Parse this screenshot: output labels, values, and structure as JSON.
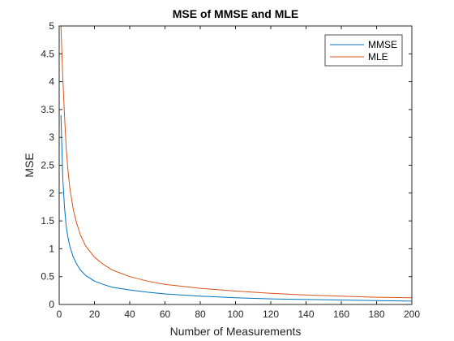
{
  "chart_data": {
    "type": "line",
    "title": "MSE of MMSE and MLE",
    "xlabel": "Number of Measurements",
    "ylabel": "MSE",
    "xlim": [
      0,
      200
    ],
    "ylim": [
      0,
      5
    ],
    "xticks": [
      0,
      20,
      40,
      60,
      80,
      100,
      120,
      140,
      160,
      180,
      200
    ],
    "yticks": [
      0,
      0.5,
      1,
      1.5,
      2,
      2.5,
      3,
      3.5,
      4,
      4.5,
      5
    ],
    "grid": false,
    "legend_position": "top-right",
    "series": [
      {
        "name": "MMSE",
        "color": "#0072bd",
        "x": [
          1,
          2,
          3,
          4,
          5,
          6,
          8,
          10,
          12,
          15,
          20,
          25,
          30,
          40,
          50,
          60,
          80,
          100,
          120,
          140,
          160,
          180,
          200
        ],
        "y": [
          3.4,
          2.3,
          1.75,
          1.4,
          1.2,
          1.05,
          0.85,
          0.72,
          0.62,
          0.52,
          0.42,
          0.36,
          0.31,
          0.26,
          0.22,
          0.19,
          0.15,
          0.12,
          0.1,
          0.09,
          0.08,
          0.07,
          0.06
        ]
      },
      {
        "name": "MLE",
        "color": "#d95319",
        "x": [
          1,
          2,
          3,
          4,
          5,
          6,
          8,
          10,
          12,
          15,
          20,
          25,
          30,
          40,
          50,
          60,
          80,
          100,
          120,
          140,
          160,
          180,
          200
        ],
        "y": [
          5.0,
          4.1,
          3.4,
          2.8,
          2.4,
          2.1,
          1.7,
          1.45,
          1.25,
          1.05,
          0.85,
          0.72,
          0.62,
          0.5,
          0.42,
          0.36,
          0.29,
          0.24,
          0.2,
          0.17,
          0.15,
          0.13,
          0.12
        ]
      }
    ]
  }
}
